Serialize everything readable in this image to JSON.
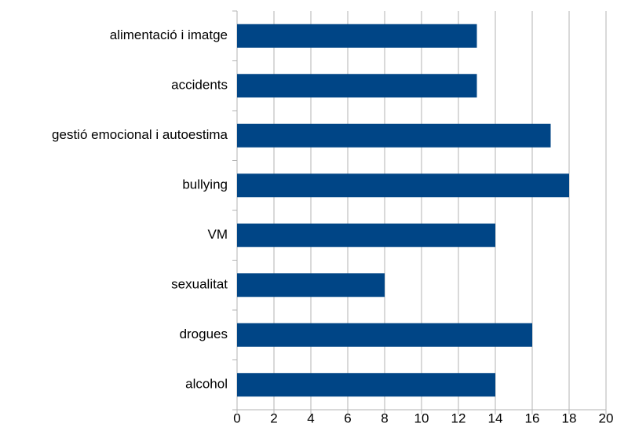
{
  "chart_data": {
    "type": "bar",
    "orientation": "horizontal",
    "categories": [
      "alimentació i imatge",
      "accidents",
      "gestió emocional i autoestima",
      "bullying",
      "VM",
      "sexualitat",
      "drogues",
      "alcohol"
    ],
    "values": [
      13,
      13,
      17,
      18,
      14,
      8,
      16,
      14
    ],
    "color": "#004586",
    "xlim": [
      0,
      20
    ],
    "xticks": [
      0,
      2,
      4,
      6,
      8,
      10,
      12,
      14,
      16,
      18,
      20
    ],
    "grid": true
  }
}
